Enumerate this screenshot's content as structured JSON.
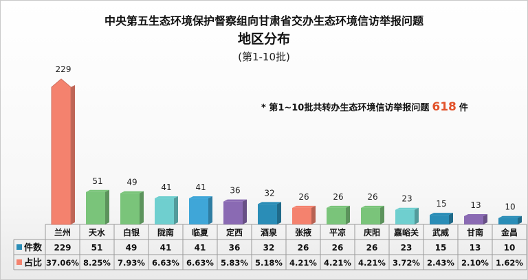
{
  "title": "中央第五生态环境保护督察组向甘肃省交办生态环境信访举报问题",
  "subtitle": "地区分布",
  "batch": "(第1-10批)",
  "note": {
    "prefix": "* 第1~10批共转办生态环境信访举报问题",
    "total": "618",
    "unit": "件"
  },
  "chart_data": {
    "type": "bar",
    "categories": [
      "兰州",
      "天水",
      "白银",
      "陇南",
      "临夏",
      "定西",
      "酒泉",
      "张掖",
      "平凉",
      "庆阳",
      "嘉峪关",
      "武威",
      "甘南",
      "金昌"
    ],
    "series": [
      {
        "name": "件数",
        "values": [
          229,
          51,
          49,
          41,
          41,
          36,
          32,
          26,
          26,
          26,
          23,
          15,
          13,
          10
        ]
      }
    ],
    "share_label": "占比",
    "shares": [
      "37.06%",
      "8.25%",
      "7.93%",
      "6.63%",
      "6.63%",
      "5.83%",
      "5.18%",
      "4.21%",
      "4.21%",
      "4.21%",
      "3.72%",
      "2.43%",
      "2.10%",
      "1.62%"
    ],
    "colors": [
      "#f4826e",
      "#7ac47a",
      "#7ac47a",
      "#6fcfcf",
      "#3fa6d8",
      "#8a6ab3",
      "#2a8db7",
      "#f4826e",
      "#7ac47a",
      "#7ac47a",
      "#6fcfcf",
      "#2a8db7",
      "#8a6ab3",
      "#2a8db7"
    ],
    "series_marker_color": "#2a8db7",
    "share_marker_color": "#f4826e",
    "ylim": [
      0,
      229
    ]
  }
}
